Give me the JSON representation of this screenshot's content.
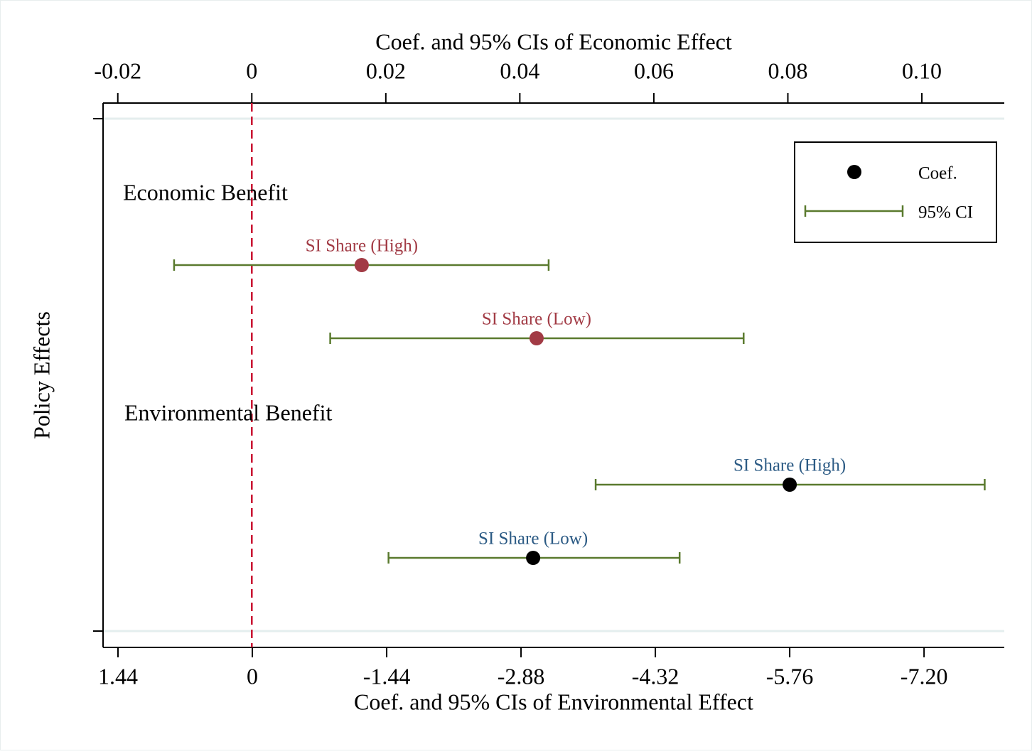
{
  "chart_data": {
    "type": "dot-ci",
    "x_label": "Coef. and 95% CIs of Economic Effect",
    "x2_label": "Coef. and 95% CIs of Environmental Effect",
    "y_label": "Policy Effects",
    "xlim": [
      -0.0222,
      0.1123
    ],
    "xticks": [
      -0.02,
      0,
      0.02,
      0.04,
      0.06,
      0.08,
      {
        "value": 0.1,
        "label": "0.10"
      }
    ],
    "x2lim": [
      1.6,
      -8.06
    ],
    "x2ticks": [
      1.44,
      0,
      -1.44,
      -2.88,
      -4.32,
      -5.76,
      {
        "value": -7.2,
        "label": "-7.20"
      }
    ],
    "refline": 0,
    "refline_color": "#c8102e",
    "ci_color": "#5a7a2e",
    "legend": {
      "position": "upper right",
      "coef": "Coef.",
      "ci": "95% CI",
      "coef_color": "#000000"
    },
    "groups": [
      {
        "label": "Economic Benefit",
        "axis": "x",
        "marker_color": "#a23b45",
        "label_color": "#a23b45",
        "items": [
          {
            "name": "SI Share (High)",
            "coef": 0.0164,
            "ci": [
              -0.0116,
              0.0443
            ]
          },
          {
            "name": "SI Share (Low)",
            "coef": 0.0425,
            "ci": [
              0.0117,
              0.0734
            ]
          }
        ]
      },
      {
        "label": "Environmental Benefit",
        "axis": "x2",
        "marker_color": "#000000",
        "label_color": "#2b5a84",
        "items": [
          {
            "name": "SI Share (High)",
            "coef": -5.76,
            "ci": [
              -3.68,
              -7.85
            ]
          },
          {
            "name": "SI Share (Low)",
            "coef": -3.01,
            "ci": [
              -1.46,
              -4.58
            ]
          }
        ]
      }
    ]
  }
}
